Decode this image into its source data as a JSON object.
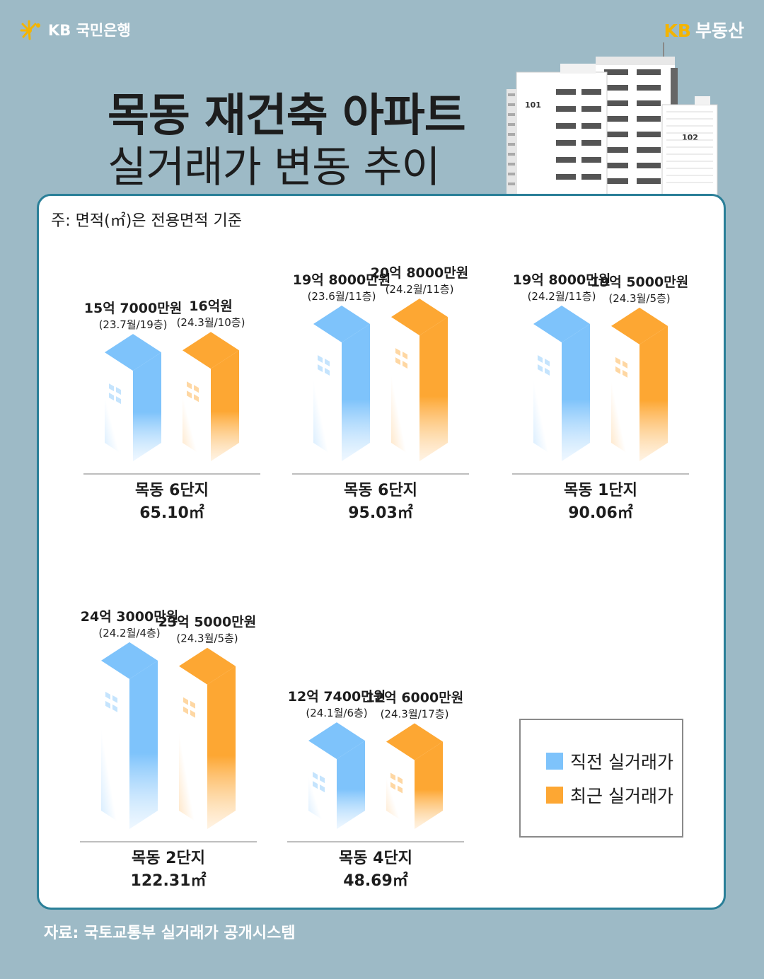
{
  "header": {
    "bank_logo": "KB 국민은행",
    "brand_kb": "KB",
    "brand_name": "부동산",
    "title_line1": "목동 재건축 아파트",
    "title_line2": "실거래가 변동 추이",
    "building_labels": [
      "101",
      "102"
    ]
  },
  "note": "주: 면적(㎡)은 전용면적 기준",
  "source": "자료: 국토교통부 실거래가 공개시스템",
  "legend": {
    "previous_label": "직전 실거래가",
    "recent_label": "최근 실거래가"
  },
  "colors": {
    "background": "#9dbac6",
    "previous": "#7ec3fb",
    "recent": "#fda733",
    "panel_border": "#2a7f98",
    "kb_yellow": "#f4b400"
  },
  "chart_data": {
    "type": "bar",
    "unit": "억원",
    "series": [
      {
        "name": "직전 실거래가",
        "values": [
          15.7,
          19.8,
          19.8,
          24.3,
          12.74
        ]
      },
      {
        "name": "최근 실거래가",
        "values": [
          16.0,
          20.8,
          19.5,
          23.5,
          12.6
        ]
      }
    ],
    "groups": [
      {
        "complex": "목동 6단지",
        "area": "65.10㎡",
        "previous": {
          "label": "15억 7000만원",
          "detail": "(23.7월/19층)",
          "value": 15.7
        },
        "recent": {
          "label": "16억원",
          "detail": "(24.3월/10층)",
          "value": 16.0
        }
      },
      {
        "complex": "목동 6단지",
        "area": "95.03㎡",
        "previous": {
          "label": "19억 8000만원",
          "detail": "(23.6월/11층)",
          "value": 19.8
        },
        "recent": {
          "label": "20억 8000만원",
          "detail": "(24.2월/11층)",
          "value": 20.8
        }
      },
      {
        "complex": "목동 1단지",
        "area": "90.06㎡",
        "previous": {
          "label": "19억 8000만원",
          "detail": "(24.2월/11층)",
          "value": 19.8
        },
        "recent": {
          "label": "19억 5000만원",
          "detail": "(24.3월/5층)",
          "value": 19.5
        }
      },
      {
        "complex": "목동 2단지",
        "area": "122.31㎡",
        "previous": {
          "label": "24억 3000만원",
          "detail": "(24.2월/4층)",
          "value": 24.3
        },
        "recent": {
          "label": "23억 5000만원",
          "detail": "(24.3월/5층)",
          "value": 23.5
        }
      },
      {
        "complex": "목동 4단지",
        "area": "48.69㎡",
        "previous": {
          "label": "12억 7400만원",
          "detail": "(24.1월/6층)",
          "value": 12.74
        },
        "recent": {
          "label": "12억 6000만원",
          "detail": "(24.3월/17층)",
          "value": 12.6
        }
      }
    ]
  }
}
